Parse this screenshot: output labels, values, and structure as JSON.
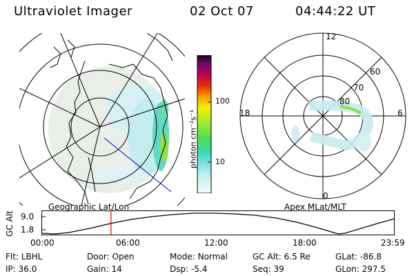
{
  "header": {
    "instrument": "Ultraviolet Imager",
    "date": "02 Oct 07",
    "time": "04:44:22 UT"
  },
  "left_map": {
    "label": "Geographic Lat/Lon"
  },
  "right_map": {
    "label": "Apex MLat/MLT",
    "mlt_labels": {
      "top": "12",
      "left": "18",
      "right": "6",
      "bottom": "0"
    },
    "lat_labels": [
      "60",
      "70",
      "80"
    ]
  },
  "colorbar": {
    "unit_label": "photon cm⁻²s⁻¹",
    "ticks": [
      "100",
      "10"
    ]
  },
  "orbit": {
    "y_axis_label": "GC Alt",
    "y_ticks": [
      "9.0",
      "1.8"
    ],
    "x_ticks": [
      "00:00",
      "06:00",
      "12:00",
      "18:00",
      "23:59"
    ],
    "current_time_fraction": 0.197
  },
  "status": {
    "rows": [
      [
        {
          "key": "Flt:",
          "value": "LBHL"
        },
        {
          "key": "Door:",
          "value": "Open"
        },
        {
          "key": "Mode:",
          "value": "Normal"
        },
        {
          "key": "GC Alt:",
          "value": "6.5 Re"
        },
        {
          "key": "GLat:",
          "value": "-86.8"
        }
      ],
      [
        {
          "key": "IP:",
          "value": "36.0"
        },
        {
          "key": "Gain:",
          "value": "14"
        },
        {
          "key": "Dsp:",
          "value": "-5.4"
        },
        {
          "key": "Seq:",
          "value": "39"
        },
        {
          "key": "GLon:",
          "value": "297.5"
        }
      ]
    ]
  },
  "colors": {
    "marker": "#e00000",
    "track": "#0000cc"
  }
}
